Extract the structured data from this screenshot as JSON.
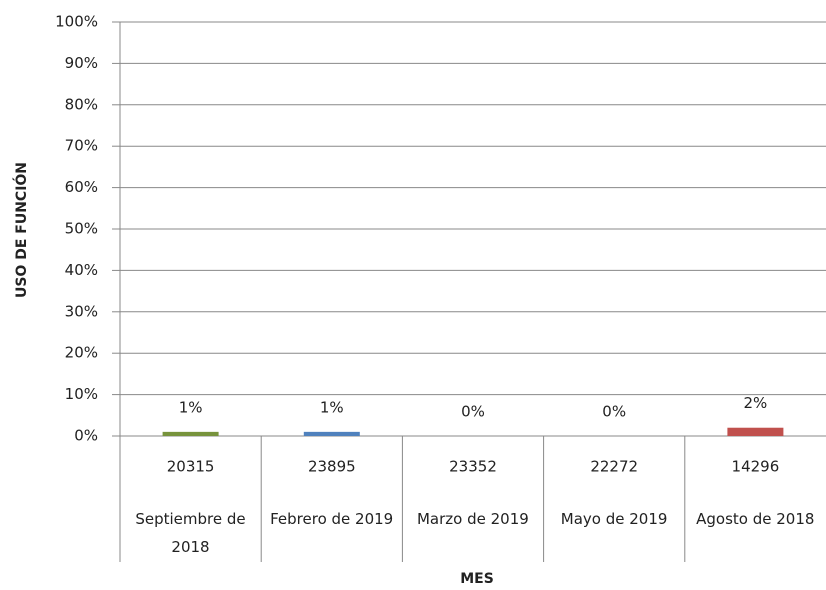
{
  "chart_data": {
    "type": "bar",
    "x_label": "MES",
    "y_label": "USO DE FUNCIÓN",
    "category_codes": [
      "20315",
      "23895",
      "23352",
      "22272",
      "14296"
    ],
    "categories": [
      "Septiembre de 2018",
      "Febrero de 2019",
      "Marzo de 2019",
      "Mayo de 2019",
      "Agosto de 2018"
    ],
    "values": [
      1,
      1,
      0,
      0,
      2
    ],
    "value_labels": [
      "1%",
      "1%",
      "0%",
      "0%",
      "2%"
    ],
    "colors": [
      "#77933c",
      "#4f81bd",
      "#8064a2",
      "#4bacc6",
      "#c0504d"
    ],
    "ylim": [
      0,
      100
    ],
    "yticks": [
      {
        "value": 0,
        "label": "0%"
      },
      {
        "value": 10,
        "label": "10%"
      },
      {
        "value": 20,
        "label": "20%"
      },
      {
        "value": 30,
        "label": "30%"
      },
      {
        "value": 40,
        "label": "40%"
      },
      {
        "value": 50,
        "label": "50%"
      },
      {
        "value": 60,
        "label": "60%"
      },
      {
        "value": 70,
        "label": "70%"
      },
      {
        "value": 80,
        "label": "80%"
      },
      {
        "value": 90,
        "label": "90%"
      },
      {
        "value": 100,
        "label": "100%"
      }
    ],
    "grid": true
  }
}
